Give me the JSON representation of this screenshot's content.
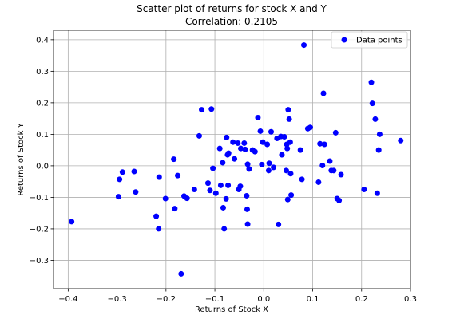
{
  "chart_data": {
    "type": "scatter",
    "title": "Scatter plot of returns for stock X and Y",
    "subtitle": "Correlation: 0.2105",
    "xlabel": "Returns of Stock X",
    "ylabel": "Returns of Stock Y",
    "xlim": [
      -0.43,
      0.3
    ],
    "ylim": [
      -0.39,
      0.43
    ],
    "xticks": [
      -0.4,
      -0.3,
      -0.2,
      -0.1,
      0.0,
      0.1,
      0.2,
      0.3
    ],
    "xtick_labels": [
      "−0.4",
      "−0.3",
      "−0.2",
      "−0.1",
      "0.0",
      "0.1",
      "0.2",
      "0.3"
    ],
    "yticks": [
      -0.3,
      -0.2,
      -0.1,
      0.0,
      0.1,
      0.2,
      0.3,
      0.4
    ],
    "ytick_labels": [
      "−0.3",
      "−0.2",
      "−0.1",
      "0.0",
      "0.1",
      "0.2",
      "0.3",
      "0.4"
    ],
    "grid": true,
    "legend_position": "top-right",
    "marker_color": "#0000ff",
    "series": [
      {
        "name": "Data points",
        "points": [
          [
            -0.393,
            -0.177
          ],
          [
            -0.297,
            -0.098
          ],
          [
            -0.295,
            -0.043
          ],
          [
            -0.289,
            -0.02
          ],
          [
            -0.265,
            -0.018
          ],
          [
            -0.262,
            -0.083
          ],
          [
            -0.22,
            -0.16
          ],
          [
            -0.215,
            -0.2
          ],
          [
            -0.214,
            -0.036
          ],
          [
            -0.201,
            -0.104
          ],
          [
            -0.184,
            0.021
          ],
          [
            -0.182,
            -0.136
          ],
          [
            -0.176,
            -0.031
          ],
          [
            -0.169,
            -0.343
          ],
          [
            -0.163,
            -0.096
          ],
          [
            -0.157,
            -0.103
          ],
          [
            -0.142,
            -0.075
          ],
          [
            -0.132,
            0.095
          ],
          [
            -0.127,
            0.178
          ],
          [
            -0.114,
            -0.055
          ],
          [
            -0.11,
            -0.078
          ],
          [
            -0.107,
            0.18
          ],
          [
            -0.104,
            -0.008
          ],
          [
            -0.098,
            -0.087
          ],
          [
            -0.09,
            0.055
          ],
          [
            -0.088,
            -0.062
          ],
          [
            -0.084,
            0.01
          ],
          [
            -0.083,
            -0.133
          ],
          [
            -0.081,
            -0.2
          ],
          [
            -0.077,
            -0.105
          ],
          [
            -0.076,
            0.09
          ],
          [
            -0.074,
            0.035
          ],
          [
            -0.073,
            -0.062
          ],
          [
            -0.072,
            0.04
          ],
          [
            -0.063,
            0.075
          ],
          [
            -0.06,
            0.022
          ],
          [
            -0.053,
            0.072
          ],
          [
            -0.051,
            -0.075
          ],
          [
            -0.048,
            -0.065
          ],
          [
            -0.047,
            0.055
          ],
          [
            -0.04,
            0.072
          ],
          [
            -0.038,
            0.052
          ],
          [
            -0.035,
            -0.095
          ],
          [
            -0.034,
            -0.138
          ],
          [
            -0.033,
            -0.185
          ],
          [
            -0.033,
            0.005
          ],
          [
            -0.03,
            -0.01
          ],
          [
            -0.023,
            0.05
          ],
          [
            -0.018,
            0.045
          ],
          [
            -0.012,
            0.153
          ],
          [
            -0.007,
            0.11
          ],
          [
            -0.004,
            0.004
          ],
          [
            -0.002,
            0.075
          ],
          [
            0.007,
            0.068
          ],
          [
            0.01,
            -0.015
          ],
          [
            0.011,
            0.008
          ],
          [
            0.015,
            0.108
          ],
          [
            0.02,
            -0.005
          ],
          [
            0.027,
            0.087
          ],
          [
            0.03,
            -0.186
          ],
          [
            0.035,
            0.093
          ],
          [
            0.037,
            0.035
          ],
          [
            0.042,
            0.092
          ],
          [
            0.046,
            -0.015
          ],
          [
            0.047,
            0.068
          ],
          [
            0.048,
            0.055
          ],
          [
            0.049,
            -0.107
          ],
          [
            0.05,
            0.178
          ],
          [
            0.052,
            0.148
          ],
          [
            0.054,
            0.075
          ],
          [
            0.055,
            -0.025
          ],
          [
            0.056,
            -0.093
          ],
          [
            0.075,
            0.05
          ],
          [
            0.078,
            -0.043
          ],
          [
            0.082,
            0.383
          ],
          [
            0.09,
            0.118
          ],
          [
            0.095,
            0.122
          ],
          [
            0.112,
            -0.052
          ],
          [
            0.115,
            0.07
          ],
          [
            0.12,
            0.001
          ],
          [
            0.122,
            0.23
          ],
          [
            0.124,
            0.068
          ],
          [
            0.135,
            0.015
          ],
          [
            0.138,
            -0.015
          ],
          [
            0.143,
            -0.015
          ],
          [
            0.147,
            0.105
          ],
          [
            0.15,
            -0.104
          ],
          [
            0.154,
            -0.11
          ],
          [
            0.158,
            -0.028
          ],
          [
            0.205,
            -0.075
          ],
          [
            0.22,
            0.265
          ],
          [
            0.222,
            0.198
          ],
          [
            0.228,
            0.148
          ],
          [
            0.232,
            -0.087
          ],
          [
            0.235,
            0.05
          ],
          [
            0.237,
            0.1
          ],
          [
            0.28,
            0.08
          ]
        ]
      }
    ]
  }
}
